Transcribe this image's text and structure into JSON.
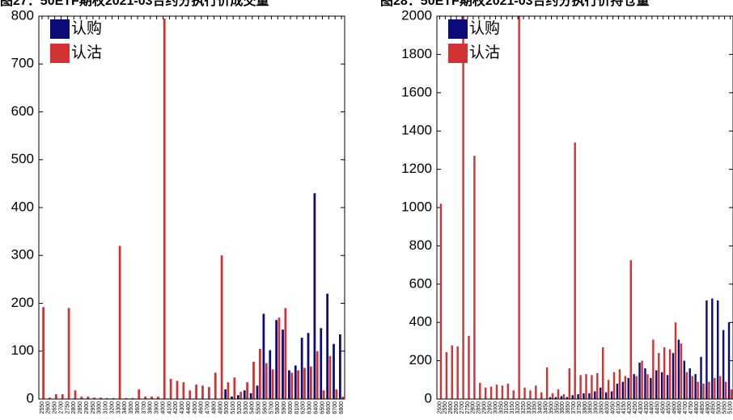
{
  "chart_data": [
    {
      "type": "bar",
      "title": "图27：50ETF期权2021-03合约分执行价成交量",
      "categories": [
        "2550",
        "2600",
        "2650",
        "2700",
        "2750",
        "2800",
        "2850",
        "2900",
        "2950",
        "3000",
        "3100",
        "3200",
        "3300",
        "3400",
        "3500",
        "3600",
        "3700",
        "3800",
        "3900",
        "4000",
        "4100",
        "4200",
        "4300",
        "4400",
        "4500",
        "4600",
        "4700",
        "4800",
        "4900",
        "5000",
        "5100",
        "5200",
        "5300",
        "5400",
        "5500",
        "5600",
        "5700",
        "5800",
        "5900",
        "6000",
        "6100",
        "6200",
        "6300",
        "6400",
        "6500",
        "6600",
        "6700",
        "6800"
      ],
      "series": [
        {
          "name": "认购",
          "color": "#0b0b7a",
          "values": [
            0,
            0,
            0,
            0,
            0,
            0,
            0,
            0,
            0,
            0,
            0,
            0,
            0,
            0,
            0,
            0,
            0,
            0,
            0,
            0,
            0,
            0,
            0,
            0,
            0,
            0,
            0,
            0,
            0,
            20,
            5,
            8,
            18,
            12,
            28,
            178,
            102,
            165,
            145,
            60,
            70,
            128,
            138,
            430,
            148,
            220,
            115,
            135
          ]
        },
        {
          "name": "认沽",
          "color": "#d23232",
          "values": [
            192,
            3,
            10,
            10,
            190,
            18,
            5,
            5,
            3,
            3,
            2,
            2,
            320,
            2,
            2,
            20,
            5,
            5,
            5,
            795,
            42,
            38,
            35,
            18,
            30,
            28,
            25,
            55,
            300,
            35,
            45,
            15,
            35,
            78,
            105,
            75,
            62,
            170,
            190,
            55,
            60,
            65,
            68,
            100,
            18,
            90,
            20,
            5
          ]
        }
      ],
      "ylim": [
        0,
        800
      ],
      "yticks": [
        0,
        100,
        200,
        300,
        400,
        500,
        600,
        700,
        800
      ],
      "legend": "upper-left"
    },
    {
      "type": "bar",
      "title": "图28：50ETF期权2021-03合约分执行价持仓量",
      "categories": [
        "2500",
        "2550",
        "2600",
        "2650",
        "2700",
        "2750",
        "2800",
        "2850",
        "2900",
        "2950",
        "3000",
        "3050",
        "3100",
        "3150",
        "3200",
        "3250",
        "3300",
        "3350",
        "3400",
        "3450",
        "3500",
        "3550",
        "3600",
        "3650",
        "3700",
        "3750",
        "3800",
        "3850",
        "3900",
        "3950",
        "4000",
        "4050",
        "4100",
        "4150",
        "4200",
        "4250",
        "4300",
        "4350",
        "4400",
        "4450",
        "4500",
        "4550",
        "4600",
        "4650",
        "4700",
        "4750",
        "4800",
        "4850",
        "4900",
        "4950",
        "5000",
        "5050",
        "5100"
      ],
      "series": [
        {
          "name": "认购",
          "color": "#0b0b7a",
          "values": [
            0,
            0,
            0,
            0,
            0,
            0,
            0,
            0,
            0,
            0,
            0,
            0,
            0,
            0,
            0,
            0,
            0,
            0,
            0,
            0,
            10,
            10,
            15,
            10,
            20,
            25,
            30,
            30,
            40,
            60,
            35,
            40,
            80,
            90,
            110,
            130,
            190,
            160,
            110,
            150,
            140,
            125,
            240,
            310,
            200,
            160,
            130,
            220,
            515,
            525,
            515,
            360,
            400
          ]
        },
        {
          "name": "认沽",
          "color": "#d23232",
          "values": [
            1020,
            245,
            280,
            275,
            2000,
            330,
            1270,
            85,
            60,
            65,
            75,
            70,
            80,
            45,
            2000,
            60,
            45,
            70,
            35,
            165,
            30,
            50,
            25,
            160,
            1340,
            125,
            130,
            125,
            135,
            270,
            100,
            140,
            155,
            120,
            725,
            120,
            200,
            130,
            310,
            240,
            270,
            260,
            400,
            290,
            140,
            120,
            90,
            80,
            90,
            110,
            120,
            90,
            50
          ]
        }
      ],
      "ylim": [
        0,
        2000
      ],
      "yticks": [
        0,
        200,
        400,
        600,
        800,
        1000,
        1200,
        1400,
        1600,
        1800,
        2000
      ],
      "legend": "upper-left"
    }
  ]
}
